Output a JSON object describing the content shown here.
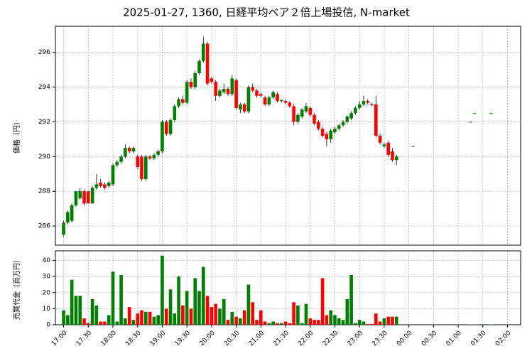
{
  "chart_data": [
    {
      "type": "candlestick",
      "title": "2025-01-27, 1360, 日経平均ベア２倍上場投信, N-market",
      "ylabel": "価格（円）",
      "up_color": "#008000",
      "down_color": "#ff0000",
      "grid": true,
      "ylim": [
        284.9,
        297.5
      ],
      "yticks": [
        286,
        288,
        290,
        292,
        294,
        296
      ],
      "x": [
        "17:00",
        "17:05",
        "17:10",
        "17:15",
        "17:20",
        "17:25",
        "17:30",
        "17:35",
        "17:40",
        "17:45",
        "17:50",
        "17:55",
        "18:00",
        "18:05",
        "18:10",
        "18:15",
        "18:20",
        "18:25",
        "18:30",
        "18:35",
        "18:40",
        "18:45",
        "18:50",
        "18:55",
        "19:00",
        "19:05",
        "19:10",
        "19:15",
        "19:20",
        "19:25",
        "19:30",
        "19:35",
        "19:40",
        "19:45",
        "19:50",
        "19:55",
        "20:00",
        "20:05",
        "20:10",
        "20:15",
        "20:20",
        "20:25",
        "20:30",
        "20:35",
        "20:40",
        "20:45",
        "20:50",
        "20:55",
        "21:00",
        "21:05",
        "21:10",
        "21:15",
        "21:20",
        "21:25",
        "21:30",
        "21:35",
        "21:40",
        "21:45",
        "21:50",
        "21:55",
        "22:00",
        "22:05",
        "22:10",
        "22:15",
        "22:20",
        "22:25",
        "22:30",
        "22:35",
        "22:40",
        "22:45",
        "22:50",
        "22:55",
        "23:00",
        "23:05",
        "23:10",
        "23:15",
        "23:20",
        "23:25",
        "23:30",
        "23:35",
        "23:40",
        "23:45",
        "00:05",
        "01:15",
        "01:20",
        "01:40"
      ],
      "open": [
        285.5,
        286.2,
        286.3,
        287.2,
        287.6,
        288.0,
        288.0,
        287.3,
        288.2,
        288.5,
        288.4,
        288.3,
        288.4,
        289.5,
        289.7,
        290.0,
        290.5,
        290.3,
        290.0,
        290.0,
        288.7,
        290.0,
        289.9,
        290.1,
        290.3,
        292.0,
        291.3,
        292.1,
        292.9,
        293.3,
        293.1,
        294.3,
        294.0,
        294.8,
        295.5,
        296.5,
        294.5,
        294.3,
        293.5,
        293.7,
        293.9,
        293.6,
        294.4,
        292.7,
        293.0,
        292.6,
        294.0,
        293.8,
        293.6,
        293.4,
        293.0,
        293.4,
        293.6,
        293.2,
        293.2,
        293.1,
        292.9,
        292.0,
        292.3,
        292.6,
        292.8,
        292.4,
        292.0,
        291.6,
        291.3,
        291.0,
        291.4,
        291.6,
        291.8,
        292.0,
        292.2,
        292.5,
        292.8,
        293.0,
        293.2,
        293.0,
        293.0,
        291.2,
        290.6,
        290.8,
        290.3,
        289.8,
        290.6,
        292.0,
        292.5,
        292.5
      ],
      "high": [
        286.3,
        286.9,
        287.3,
        288.0,
        288.2,
        288.1,
        288.0,
        288.3,
        289.0,
        288.7,
        288.5,
        288.6,
        289.6,
        289.8,
        290.1,
        290.7,
        290.6,
        290.6,
        290.1,
        290.1,
        290.1,
        290.1,
        290.2,
        290.4,
        292.1,
        292.1,
        292.2,
        293.0,
        293.4,
        293.5,
        294.4,
        294.5,
        294.9,
        295.6,
        296.9,
        296.6,
        294.6,
        294.4,
        293.9,
        294.2,
        294.0,
        294.7,
        294.5,
        293.1,
        293.1,
        294.1,
        294.2,
        293.9,
        293.7,
        293.5,
        293.5,
        293.8,
        293.7,
        293.3,
        293.3,
        293.2,
        293.0,
        292.5,
        292.8,
        293.1,
        292.9,
        292.5,
        292.1,
        291.7,
        291.4,
        291.6,
        291.7,
        291.9,
        292.1,
        292.4,
        292.6,
        292.9,
        293.2,
        293.5,
        293.3,
        293.1,
        293.5,
        291.3,
        290.8,
        290.9,
        290.5,
        290.1,
        290.6,
        292.0,
        292.5,
        292.5
      ],
      "low": [
        285.4,
        286.1,
        286.2,
        287.1,
        287.5,
        287.2,
        287.3,
        287.3,
        288.1,
        288.2,
        288.1,
        288.2,
        288.3,
        289.4,
        289.6,
        289.9,
        290.2,
        290.2,
        289.3,
        288.6,
        288.6,
        289.8,
        289.8,
        290.0,
        290.2,
        291.2,
        291.2,
        292.0,
        292.8,
        293.0,
        293.0,
        293.9,
        293.9,
        294.7,
        295.4,
        294.1,
        294.2,
        293.2,
        293.4,
        293.6,
        293.5,
        293.5,
        292.7,
        292.5,
        292.5,
        292.5,
        293.7,
        293.4,
        293.4,
        292.9,
        292.9,
        293.3,
        293.1,
        293.1,
        293.0,
        292.8,
        291.8,
        291.9,
        292.2,
        292.5,
        292.3,
        291.8,
        291.5,
        291.1,
        290.6,
        290.8,
        291.3,
        291.5,
        291.7,
        291.9,
        292.1,
        292.4,
        292.7,
        292.9,
        293.0,
        292.9,
        291.1,
        290.7,
        290.5,
        290.0,
        289.7,
        289.5,
        290.6,
        292.0,
        292.5,
        292.5
      ],
      "close": [
        286.2,
        286.8,
        287.2,
        288.0,
        288.0,
        287.3,
        287.3,
        288.2,
        288.4,
        288.3,
        288.2,
        288.5,
        289.5,
        289.7,
        290.0,
        290.5,
        290.3,
        290.5,
        289.4,
        288.7,
        290.0,
        289.9,
        290.1,
        290.3,
        292.0,
        291.3,
        292.1,
        292.9,
        293.3,
        293.1,
        294.3,
        294.0,
        294.8,
        295.5,
        296.5,
        294.2,
        294.3,
        293.5,
        293.8,
        293.9,
        293.6,
        294.5,
        292.8,
        293.0,
        292.6,
        294.0,
        293.8,
        293.5,
        293.5,
        293.0,
        293.4,
        293.7,
        293.2,
        293.25,
        293.1,
        292.9,
        292.0,
        292.4,
        292.7,
        292.9,
        292.4,
        291.9,
        291.6,
        291.2,
        291.0,
        291.5,
        291.6,
        291.8,
        292.0,
        292.3,
        292.5,
        292.8,
        293.0,
        293.2,
        293.1,
        292.95,
        291.2,
        290.8,
        290.7,
        290.1,
        289.8,
        290.0,
        290.6,
        292.0,
        292.5,
        292.5
      ]
    },
    {
      "type": "bar",
      "ylabel": "売買代金（百万円）",
      "grid": true,
      "ylim": [
        0,
        46
      ],
      "yticks": [
        0,
        10,
        20,
        30,
        40
      ],
      "xlim": [
        "16:50",
        "02:16"
      ],
      "xticks": [
        "17:00",
        "17:30",
        "18:00",
        "18:30",
        "19:00",
        "19:30",
        "20:00",
        "20:30",
        "21:00",
        "21:30",
        "22:00",
        "22:30",
        "23:00",
        "23:30",
        "00:00",
        "00:30",
        "01:00",
        "01:30",
        "02:00"
      ],
      "values": [
        9,
        6,
        28,
        18,
        18,
        4,
        1,
        16,
        12,
        2,
        2,
        6,
        33,
        2,
        31,
        4,
        11,
        3,
        7,
        9,
        8,
        8,
        5,
        6,
        43,
        10,
        22,
        7,
        30,
        12,
        21,
        10,
        29,
        21,
        36,
        18,
        11,
        13,
        10,
        16,
        3,
        8,
        5,
        4,
        9,
        25,
        14,
        3,
        9,
        2,
        1,
        2,
        1,
        1,
        2,
        1,
        14,
        12,
        1,
        13,
        4,
        3,
        3,
        29,
        6,
        9,
        6,
        4,
        3,
        16,
        31,
        1,
        3,
        2,
        0.5,
        0.5,
        7,
        2,
        4,
        5,
        5,
        5,
        0.3,
        0.2,
        0.2,
        0.2
      ]
    }
  ]
}
